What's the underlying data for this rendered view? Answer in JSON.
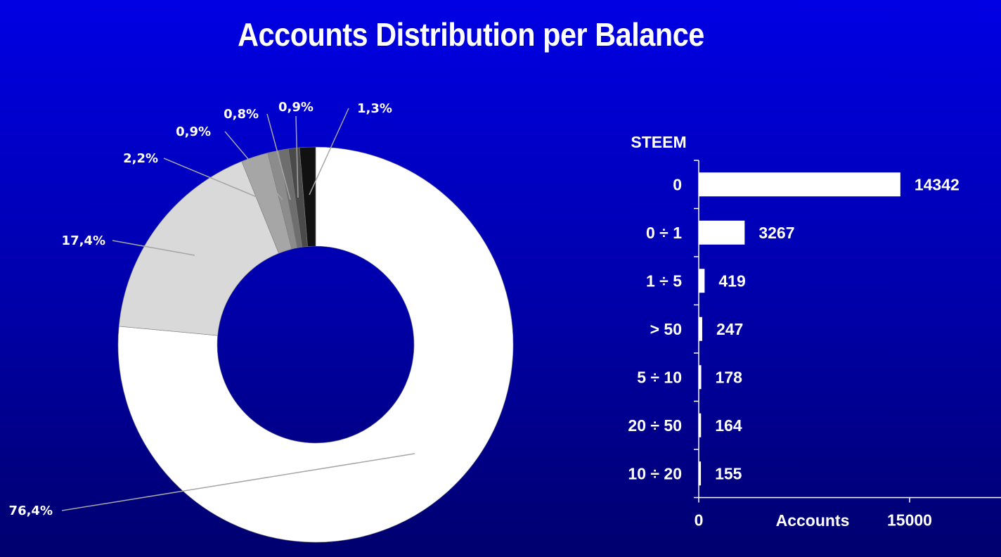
{
  "title": "Accounts Distribution per Balance",
  "chart_data": [
    {
      "type": "pie",
      "style": "donut",
      "slices": [
        {
          "label": "76,4%",
          "value": 76.4,
          "color": "#ffffff"
        },
        {
          "label": "17,4%",
          "value": 17.4,
          "color": "#d9d9d9"
        },
        {
          "label": "2,2%",
          "value": 2.2,
          "color": "#a6a6a6"
        },
        {
          "label": "0,9%",
          "value": 0.9,
          "color": "#8c8c8c"
        },
        {
          "label": "0,8%",
          "value": 0.8,
          "color": "#6e6e6e"
        },
        {
          "label": "0,9%",
          "value": 0.9,
          "color": "#4a4a4a"
        },
        {
          "label": "1,3%",
          "value": 1.3,
          "color": "#111111"
        }
      ]
    },
    {
      "type": "bar",
      "orientation": "horizontal",
      "category_axis_title": "STEEM",
      "value_axis_title": "Accounts",
      "categories": [
        "0",
        "0 ÷  1",
        "1 ÷  5",
        "> 50",
        "5 ÷ 10",
        "20 ÷ 50",
        "10 ÷  20"
      ],
      "values": [
        14342,
        3267,
        419,
        247,
        178,
        164,
        155
      ],
      "data_labels": [
        "14342",
        "3267",
        "419",
        "247",
        "178",
        "164",
        "155"
      ],
      "xlim": [
        0,
        21000
      ],
      "ticks": [
        {
          "value": 0,
          "label": "0"
        },
        {
          "value": 15000,
          "label": "15000"
        }
      ],
      "bar_color": "#ffffff"
    }
  ]
}
